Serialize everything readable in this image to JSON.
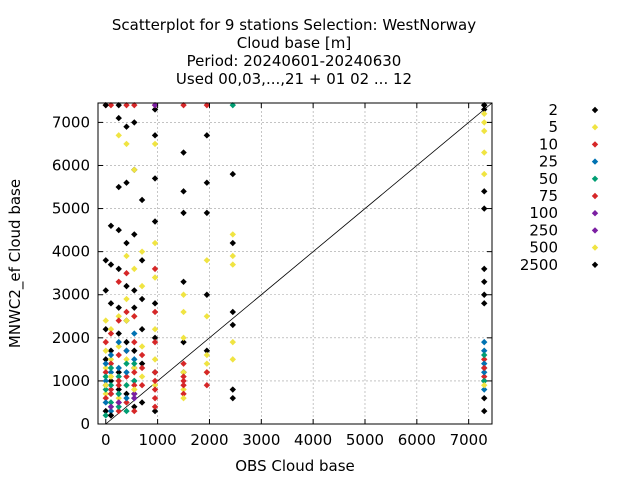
{
  "chart_data": {
    "type": "scatter",
    "title_lines": [
      "Scatterplot for    9 stations Selection: WestNorway",
      "Cloud base [m]",
      "Period: 20240601-20240630",
      "Used 00,03,...,21 + 01 02 ... 12"
    ],
    "xlabel": "OBS Cloud base",
    "ylabel": "MNWC2_ef Cloud base",
    "xlim": [
      -150,
      7450
    ],
    "ylim": [
      0,
      7450
    ],
    "xticks": [
      0,
      1000,
      2000,
      3000,
      4000,
      5000,
      6000,
      7000
    ],
    "yticks": [
      0,
      1000,
      2000,
      3000,
      4000,
      5000,
      6000,
      7000
    ],
    "grid": true,
    "legend_position": "right",
    "reference_line": "y = x",
    "series": [
      {
        "name": "2",
        "color": "#000000",
        "points": [
          [
            0,
            3800
          ],
          [
            0,
            3100
          ],
          [
            0,
            2200
          ],
          [
            0,
            1500
          ],
          [
            0,
            900
          ],
          [
            0,
            300
          ],
          [
            100,
            4600
          ],
          [
            100,
            3700
          ],
          [
            100,
            2800
          ],
          [
            100,
            1700
          ],
          [
            100,
            1000
          ],
          [
            250,
            7100
          ],
          [
            250,
            5500
          ],
          [
            250,
            4500
          ],
          [
            250,
            3600
          ],
          [
            250,
            2700
          ],
          [
            250,
            2100
          ],
          [
            250,
            1200
          ],
          [
            250,
            800
          ],
          [
            400,
            6900
          ],
          [
            400,
            5600
          ],
          [
            400,
            4200
          ],
          [
            400,
            3200
          ],
          [
            400,
            2400
          ],
          [
            400,
            1900
          ],
          [
            400,
            700
          ],
          [
            550,
            7000
          ],
          [
            550,
            5900
          ],
          [
            550,
            4400
          ],
          [
            550,
            3100
          ],
          [
            550,
            2700
          ],
          [
            550,
            1700
          ],
          [
            550,
            1300
          ],
          [
            550,
            400
          ],
          [
            700,
            5200
          ],
          [
            700,
            3800
          ],
          [
            700,
            2900
          ],
          [
            700,
            2200
          ],
          [
            700,
            1400
          ],
          [
            700,
            500
          ],
          [
            950,
            7300
          ],
          [
            950,
            6700
          ],
          [
            950,
            5700
          ],
          [
            950,
            4700
          ],
          [
            950,
            2800
          ],
          [
            950,
            2000
          ],
          [
            950,
            1200
          ],
          [
            950,
            300
          ],
          [
            1500,
            6300
          ],
          [
            1500,
            5400
          ],
          [
            1500,
            4900
          ],
          [
            1500,
            3300
          ],
          [
            1500,
            1900
          ],
          [
            1500,
            1200
          ],
          [
            1950,
            6700
          ],
          [
            1950,
            5600
          ],
          [
            1950,
            4900
          ],
          [
            1950,
            3000
          ],
          [
            1950,
            1700
          ],
          [
            2450,
            5800
          ],
          [
            2450,
            4200
          ],
          [
            2450,
            2600
          ],
          [
            2450,
            2300
          ],
          [
            2450,
            800
          ],
          [
            2450,
            600
          ],
          [
            7300,
            7400
          ],
          [
            7300,
            7300
          ],
          [
            7300,
            5400
          ],
          [
            7300,
            5000
          ],
          [
            7300,
            3600
          ],
          [
            7300,
            3300
          ],
          [
            7300,
            3000
          ],
          [
            7300,
            2800
          ],
          [
            7300,
            1000
          ],
          [
            7300,
            600
          ],
          [
            7300,
            300
          ]
        ]
      },
      {
        "name": "5",
        "color": "#f0e442",
        "points": [
          [
            0,
            2400
          ],
          [
            0,
            1700
          ],
          [
            0,
            1300
          ],
          [
            0,
            700
          ],
          [
            100,
            2200
          ],
          [
            100,
            1500
          ],
          [
            100,
            1100
          ],
          [
            100,
            400
          ],
          [
            250,
            6700
          ],
          [
            250,
            2500
          ],
          [
            250,
            1800
          ],
          [
            250,
            1000
          ],
          [
            250,
            600
          ],
          [
            400,
            6500
          ],
          [
            400,
            3900
          ],
          [
            400,
            2900
          ],
          [
            400,
            2400
          ],
          [
            400,
            1500
          ],
          [
            400,
            900
          ],
          [
            550,
            5900
          ],
          [
            550,
            3600
          ],
          [
            550,
            2500
          ],
          [
            550,
            1300
          ],
          [
            550,
            800
          ],
          [
            700,
            4000
          ],
          [
            700,
            3200
          ],
          [
            700,
            1800
          ],
          [
            700,
            1100
          ],
          [
            950,
            6500
          ],
          [
            950,
            4200
          ],
          [
            950,
            3400
          ],
          [
            950,
            2200
          ],
          [
            950,
            1500
          ],
          [
            950,
            900
          ],
          [
            1500,
            3000
          ],
          [
            1500,
            2600
          ],
          [
            1500,
            2000
          ],
          [
            1500,
            1200
          ],
          [
            1500,
            800
          ],
          [
            1950,
            3800
          ],
          [
            1950,
            2500
          ],
          [
            1950,
            1600
          ],
          [
            1950,
            1200
          ],
          [
            2450,
            4400
          ],
          [
            2450,
            3900
          ],
          [
            2450,
            3700
          ],
          [
            2450,
            1900
          ],
          [
            2450,
            1500
          ],
          [
            7300,
            7200
          ],
          [
            7300,
            7000
          ],
          [
            7300,
            6800
          ],
          [
            7300,
            6300
          ],
          [
            7300,
            5800
          ]
        ]
      },
      {
        "name": "10",
        "color": "#d62728",
        "points": [
          [
            0,
            1900
          ],
          [
            0,
            1200
          ],
          [
            0,
            600
          ],
          [
            100,
            2100
          ],
          [
            100,
            1400
          ],
          [
            100,
            800
          ],
          [
            100,
            200
          ],
          [
            250,
            3300
          ],
          [
            250,
            2400
          ],
          [
            250,
            1600
          ],
          [
            250,
            900
          ],
          [
            250,
            300
          ],
          [
            400,
            3500
          ],
          [
            400,
            2600
          ],
          [
            400,
            1700
          ],
          [
            400,
            1100
          ],
          [
            400,
            500
          ],
          [
            550,
            2500
          ],
          [
            550,
            1900
          ],
          [
            550,
            1200
          ],
          [
            550,
            700
          ],
          [
            550,
            300
          ],
          [
            700,
            1600
          ],
          [
            700,
            1300
          ],
          [
            700,
            900
          ],
          [
            950,
            3600
          ],
          [
            950,
            2600
          ],
          [
            950,
            1900
          ],
          [
            950,
            1200
          ],
          [
            950,
            800
          ],
          [
            950,
            400
          ],
          [
            1500,
            1400
          ],
          [
            1500,
            1100
          ],
          [
            1500,
            900
          ],
          [
            1500,
            700
          ],
          [
            1950,
            1200
          ],
          [
            1950,
            900
          ],
          [
            7300,
            1500
          ],
          [
            7300,
            1100
          ]
        ]
      },
      {
        "name": "25",
        "color": "#0072b2",
        "points": [
          [
            0,
            1400
          ],
          [
            0,
            1000
          ],
          [
            0,
            500
          ],
          [
            100,
            1600
          ],
          [
            100,
            1200
          ],
          [
            100,
            700
          ],
          [
            100,
            300
          ],
          [
            250,
            1900
          ],
          [
            250,
            1300
          ],
          [
            250,
            700
          ],
          [
            400,
            1700
          ],
          [
            400,
            1200
          ],
          [
            400,
            600
          ],
          [
            550,
            2100
          ],
          [
            550,
            1500
          ],
          [
            550,
            1000
          ],
          [
            550,
            600
          ],
          [
            7300,
            1900
          ],
          [
            7300,
            1700
          ],
          [
            7300,
            1400
          ],
          [
            7300,
            1300
          ],
          [
            7300,
            1200
          ],
          [
            7300,
            800
          ]
        ]
      },
      {
        "name": "50",
        "color": "#009e73",
        "points": [
          [
            0,
            1100
          ],
          [
            0,
            800
          ],
          [
            0,
            200
          ],
          [
            100,
            1300
          ],
          [
            100,
            900
          ],
          [
            100,
            500
          ],
          [
            250,
            1100
          ],
          [
            250,
            700
          ],
          [
            250,
            400
          ],
          [
            400,
            1400
          ],
          [
            400,
            900
          ],
          [
            400,
            300
          ],
          [
            550,
            1400
          ],
          [
            550,
            1000
          ],
          [
            550,
            700
          ],
          [
            2450,
            7400
          ],
          [
            7300,
            1600
          ],
          [
            7300,
            1000
          ]
        ]
      },
      {
        "name": "75",
        "color": "#d62728",
        "points": [
          [
            0,
            7400
          ],
          [
            100,
            7400
          ],
          [
            400,
            7400
          ],
          [
            550,
            7400
          ],
          [
            950,
            7400
          ],
          [
            1500,
            7400
          ],
          [
            1950,
            7400
          ],
          [
            100,
            700
          ],
          [
            250,
            1000
          ],
          [
            250,
            500
          ],
          [
            550,
            900
          ],
          [
            950,
            1000
          ],
          [
            950,
            600
          ],
          [
            1500,
            1000
          ],
          [
            7300,
            1300
          ]
        ]
      },
      {
        "name": "100",
        "color": "#7b1fa2",
        "points": [
          [
            950,
            7400
          ],
          [
            550,
            700
          ],
          [
            100,
            400
          ]
        ]
      },
      {
        "name": "250",
        "color": "#7b1fa2",
        "points": [
          [
            550,
            600
          ],
          [
            250,
            500
          ]
        ]
      },
      {
        "name": "500",
        "color": "#f0e442",
        "points": [
          [
            0,
            900
          ],
          [
            100,
            1100
          ],
          [
            550,
            800
          ],
          [
            1500,
            600
          ],
          [
            1950,
            1400
          ],
          [
            7300,
            900
          ]
        ]
      },
      {
        "name": "2500",
        "color": "#000000",
        "points": [
          [
            0,
            7400
          ],
          [
            250,
            7400
          ],
          [
            7300,
            7400
          ],
          [
            100,
            200
          ]
        ]
      }
    ]
  }
}
